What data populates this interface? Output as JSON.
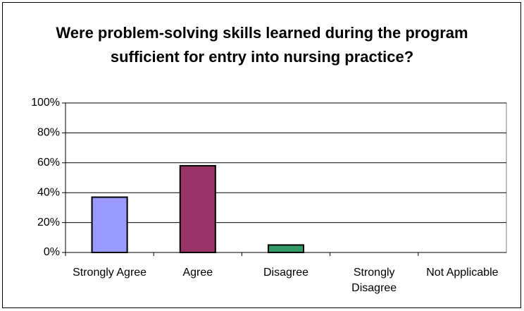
{
  "chart_data": {
    "type": "bar",
    "title": "Were problem-solving skills learned during the program sufficient for entry into nursing practice?",
    "categories": [
      "Strongly Agree",
      "Agree",
      "Disagree",
      "Strongly Disagree",
      "Not Applicable"
    ],
    "values": [
      37,
      58,
      5,
      0,
      0
    ],
    "colors": [
      "#9999ff",
      "#993366",
      "#339966",
      "#ffffcc",
      "#ccffff"
    ],
    "ylim": [
      0,
      100
    ],
    "yticks": [
      {
        "value": 0,
        "label": "0%"
      },
      {
        "value": 20,
        "label": "20%"
      },
      {
        "value": 40,
        "label": "40%"
      },
      {
        "value": 60,
        "label": "60%"
      },
      {
        "value": 80,
        "label": "80%"
      },
      {
        "value": 100,
        "label": "100%"
      }
    ],
    "grid": true
  }
}
